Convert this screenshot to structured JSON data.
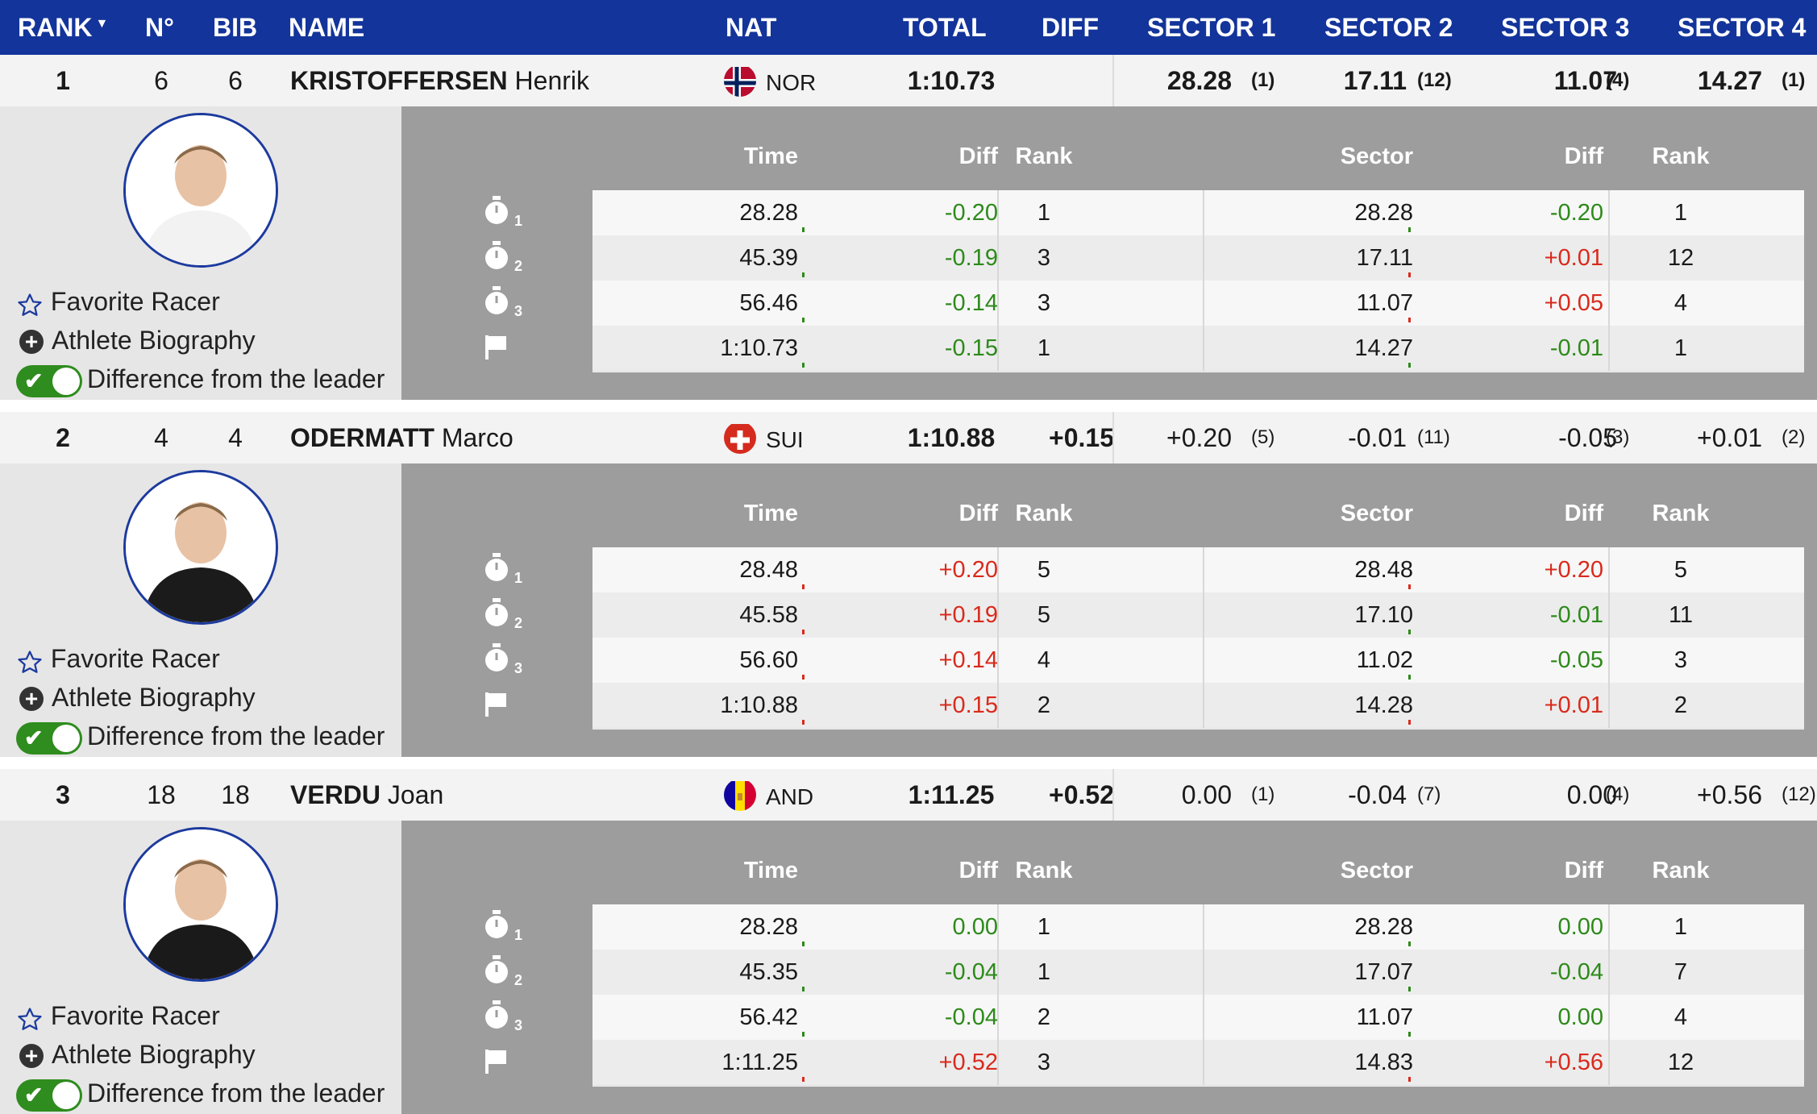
{
  "header": {
    "rank": "RANK",
    "sort_indicator": "▼",
    "no": "N°",
    "bib": "BIB",
    "name": "NAME",
    "nat": "NAT",
    "total": "TOTAL",
    "diff": "DIFF",
    "sector1": "SECTOR 1",
    "sector2": "SECTOR 2",
    "sector3": "SECTOR 3",
    "sector4": "SECTOR 4"
  },
  "detail_headers": {
    "time": "Time",
    "diff": "Diff",
    "rank": "Rank",
    "sector": "Sector",
    "diff2": "Diff",
    "rank2": "Rank"
  },
  "options": {
    "favorite": "Favorite Racer",
    "biography": "Athlete Biography",
    "diff_leader": "Difference from the leader"
  },
  "colors": {
    "header_bg": "#13349a",
    "positive": "#d92a1c",
    "negative": "#2d8a1a",
    "toggle_on": "#2f8c1e"
  },
  "racers": [
    {
      "rank": "1",
      "no": "6",
      "bib": "6",
      "last_name": "KRISTOFFERSEN",
      "first_name": "Henrik",
      "nat": "NOR",
      "flag": "norway-flag",
      "total": "1:10.73",
      "diff": "",
      "sectors": [
        {
          "value": "28.28",
          "rank": "(1)"
        },
        {
          "value": "17.11",
          "rank": "(12)"
        },
        {
          "value": "11.07",
          "rank": "(4)"
        },
        {
          "value": "14.27",
          "rank": "(1)"
        }
      ],
      "splits": [
        {
          "label": "1",
          "time": "28.28",
          "diff": "-0.20",
          "rank": "1",
          "sector": "28.28",
          "sdiff": "-0.20",
          "srank": "1"
        },
        {
          "label": "2",
          "time": "45.39",
          "diff": "-0.19",
          "rank": "3",
          "sector": "17.11",
          "sdiff": "+0.01",
          "srank": "12"
        },
        {
          "label": "3",
          "time": "56.46",
          "diff": "-0.14",
          "rank": "3",
          "sector": "11.07",
          "sdiff": "+0.05",
          "srank": "4"
        },
        {
          "label": "finish",
          "time": "1:10.73",
          "diff": "-0.15",
          "rank": "1",
          "sector": "14.27",
          "sdiff": "-0.01",
          "srank": "1"
        }
      ]
    },
    {
      "rank": "2",
      "no": "4",
      "bib": "4",
      "last_name": "ODERMATT",
      "first_name": "Marco",
      "nat": "SUI",
      "flag": "switzerland-flag",
      "total": "1:10.88",
      "diff": "+0.15",
      "sectors": [
        {
          "value": "+0.20",
          "rank": "(5)"
        },
        {
          "value": "-0.01",
          "rank": "(11)"
        },
        {
          "value": "-0.05",
          "rank": "(3)"
        },
        {
          "value": "+0.01",
          "rank": "(2)"
        }
      ],
      "splits": [
        {
          "label": "1",
          "time": "28.48",
          "diff": "+0.20",
          "rank": "5",
          "sector": "28.48",
          "sdiff": "+0.20",
          "srank": "5"
        },
        {
          "label": "2",
          "time": "45.58",
          "diff": "+0.19",
          "rank": "5",
          "sector": "17.10",
          "sdiff": "-0.01",
          "srank": "11"
        },
        {
          "label": "3",
          "time": "56.60",
          "diff": "+0.14",
          "rank": "4",
          "sector": "11.02",
          "sdiff": "-0.05",
          "srank": "3"
        },
        {
          "label": "finish",
          "time": "1:10.88",
          "diff": "+0.15",
          "rank": "2",
          "sector": "14.28",
          "sdiff": "+0.01",
          "srank": "2"
        }
      ]
    },
    {
      "rank": "3",
      "no": "18",
      "bib": "18",
      "last_name": "VERDU",
      "first_name": "Joan",
      "nat": "AND",
      "flag": "andorra-flag",
      "total": "1:11.25",
      "diff": "+0.52",
      "sectors": [
        {
          "value": "0.00",
          "rank": "(1)"
        },
        {
          "value": "-0.04",
          "rank": "(7)"
        },
        {
          "value": "0.00",
          "rank": "(4)"
        },
        {
          "value": "+0.56",
          "rank": "(12)"
        }
      ],
      "splits": [
        {
          "label": "1",
          "time": "28.28",
          "diff": "0.00",
          "rank": "1",
          "sector": "28.28",
          "sdiff": "0.00",
          "srank": "1"
        },
        {
          "label": "2",
          "time": "45.35",
          "diff": "-0.04",
          "rank": "1",
          "sector": "17.07",
          "sdiff": "-0.04",
          "srank": "7"
        },
        {
          "label": "3",
          "time": "56.42",
          "diff": "-0.04",
          "rank": "2",
          "sector": "11.07",
          "sdiff": "0.00",
          "srank": "4"
        },
        {
          "label": "finish",
          "time": "1:11.25",
          "diff": "+0.52",
          "rank": "3",
          "sector": "14.83",
          "sdiff": "+0.56",
          "srank": "12"
        }
      ]
    }
  ]
}
